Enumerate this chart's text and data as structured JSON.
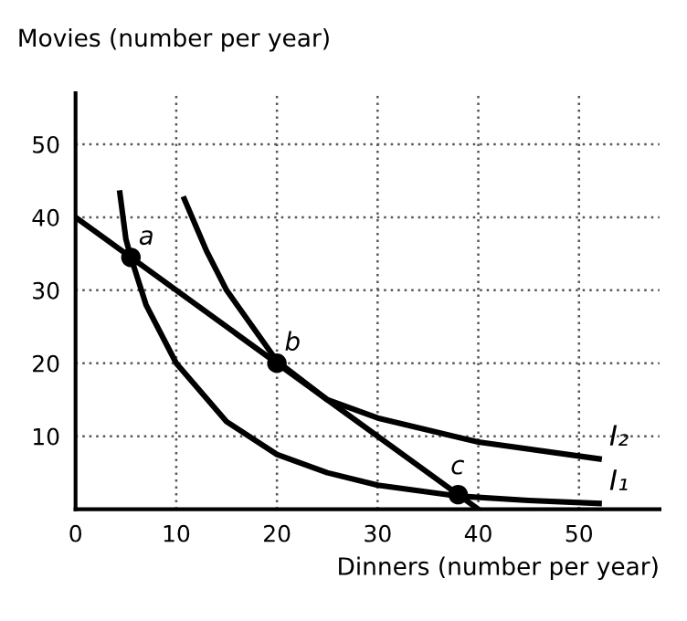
{
  "chart_data": {
    "type": "line",
    "xlabel": "Dinners (number per year)",
    "ylabel": "Movies (number per year)",
    "xlim": [
      0,
      58
    ],
    "ylim": [
      0,
      57
    ],
    "xticks": [
      0,
      10,
      20,
      30,
      40,
      50
    ],
    "yticks": [
      10,
      20,
      30,
      40,
      50
    ],
    "grid": true,
    "legend": false,
    "series": [
      {
        "color": "#000000",
        "x": [
          0,
          40
        ],
        "values": [
          40,
          0
        ]
      },
      {
        "name": "I₁",
        "color": "#000000",
        "x": [
          4.4,
          5,
          5.5,
          7,
          10,
          15,
          20,
          25,
          30,
          38,
          45,
          52
        ],
        "values": [
          43.3,
          37,
          34.5,
          28,
          20,
          12,
          7.5,
          5,
          3.3,
          1.8,
          1.2,
          0.8
        ]
      },
      {
        "name": "I₂",
        "color": "#000000",
        "x": [
          10.8,
          13,
          15,
          20,
          25,
          30,
          40,
          52
        ],
        "values": [
          42.5,
          35.4,
          30,
          20.3,
          15,
          12.5,
          9.2,
          6.9
        ]
      },
      {
        "type": "scatter",
        "marker": "circle",
        "color": "#000000",
        "x": [
          5.5,
          20,
          38
        ],
        "values": [
          34.5,
          20,
          2
        ]
      }
    ],
    "annotations": [
      {
        "text": "a",
        "x": 5.5,
        "y": 34.5
      },
      {
        "text": "b",
        "x": 20,
        "y": 20
      },
      {
        "text": "c",
        "x": 38,
        "y": 2
      }
    ]
  }
}
